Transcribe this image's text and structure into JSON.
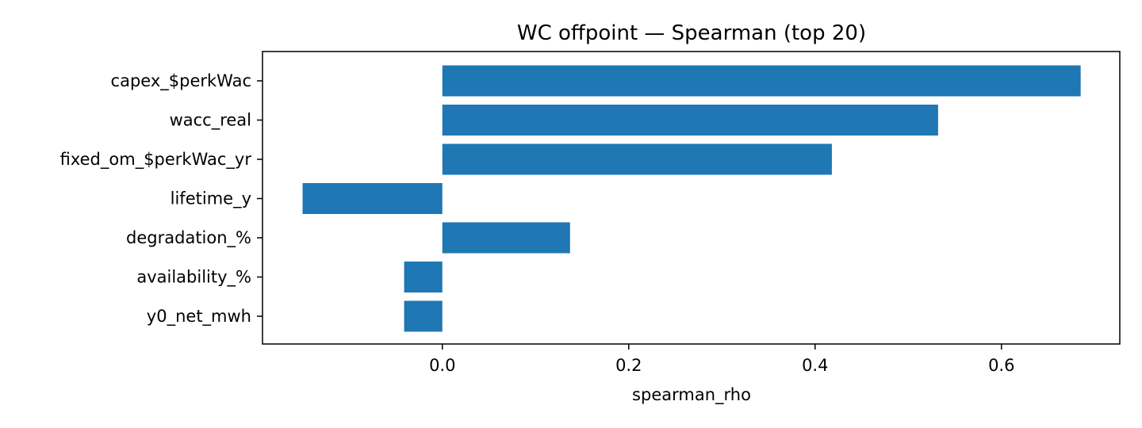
{
  "chart_data": {
    "type": "bar",
    "orientation": "horizontal",
    "title": "WC offpoint — Spearman (top 20)",
    "xlabel": "spearman_rho",
    "ylabel": "",
    "categories": [
      "capex_$perkWac",
      "wacc_real",
      "fixed_om_$perkWac_yr",
      "lifetime_y",
      "degradation_%",
      "availability_%",
      "y0_net_mwh"
    ],
    "values": [
      0.685,
      0.532,
      0.418,
      -0.15,
      0.137,
      -0.041,
      -0.041
    ],
    "xlim": [
      -0.193,
      0.727
    ],
    "xticks": [
      0.0,
      0.2,
      0.4,
      0.6
    ],
    "xtick_labels": [
      "0.0",
      "0.2",
      "0.4",
      "0.6"
    ],
    "bar_color": "#1f77b4",
    "grid": false,
    "legend": "none"
  }
}
